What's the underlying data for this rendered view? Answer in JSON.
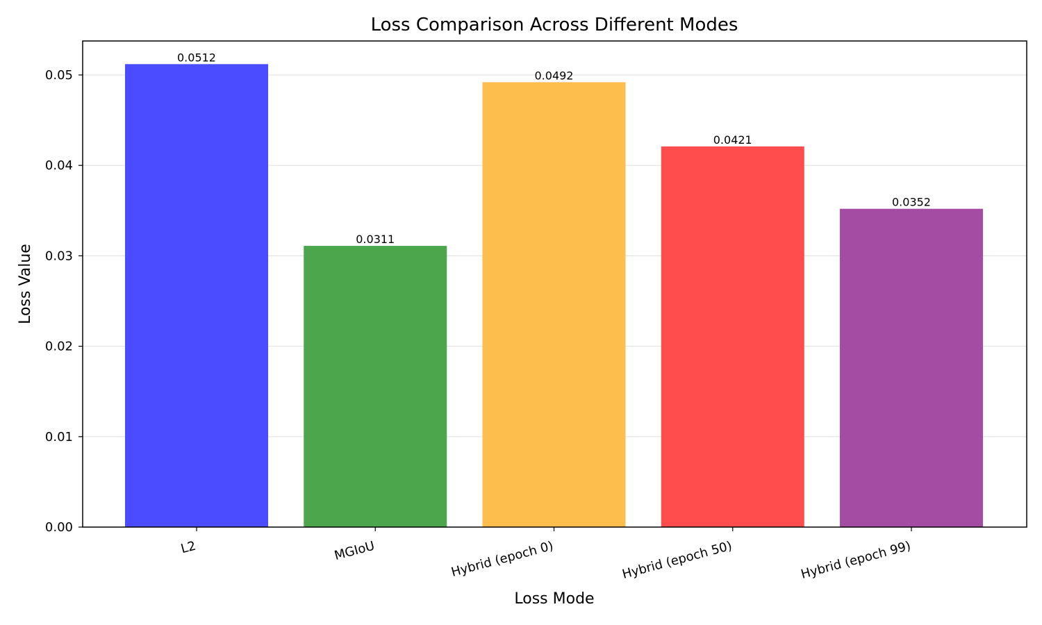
{
  "chart_data": {
    "type": "bar",
    "title": "Loss Comparison Across Different Modes",
    "xlabel": "Loss Mode",
    "ylabel": "Loss Value",
    "categories": [
      "L2",
      "MGIoU",
      "Hybrid (epoch 0)",
      "Hybrid (epoch 50)",
      "Hybrid (epoch 99)"
    ],
    "values": [
      0.0512,
      0.0311,
      0.0492,
      0.0421,
      0.0352
    ],
    "data_labels": [
      "0.0512",
      "0.0311",
      "0.0492",
      "0.0421",
      "0.0352"
    ],
    "colors": [
      "#4b4bff",
      "#4ca64c",
      "#fdbe4d",
      "#ff4c4c",
      "#a44ca4"
    ],
    "yticks": [
      0,
      0.01,
      0.02,
      0.03,
      0.04,
      0.05
    ],
    "ytick_labels": [
      "0.00",
      "0.01",
      "0.02",
      "0.03",
      "0.04",
      "0.05"
    ],
    "ylim": [
      0,
      0.05376
    ],
    "grid": "y",
    "legend": "none"
  }
}
